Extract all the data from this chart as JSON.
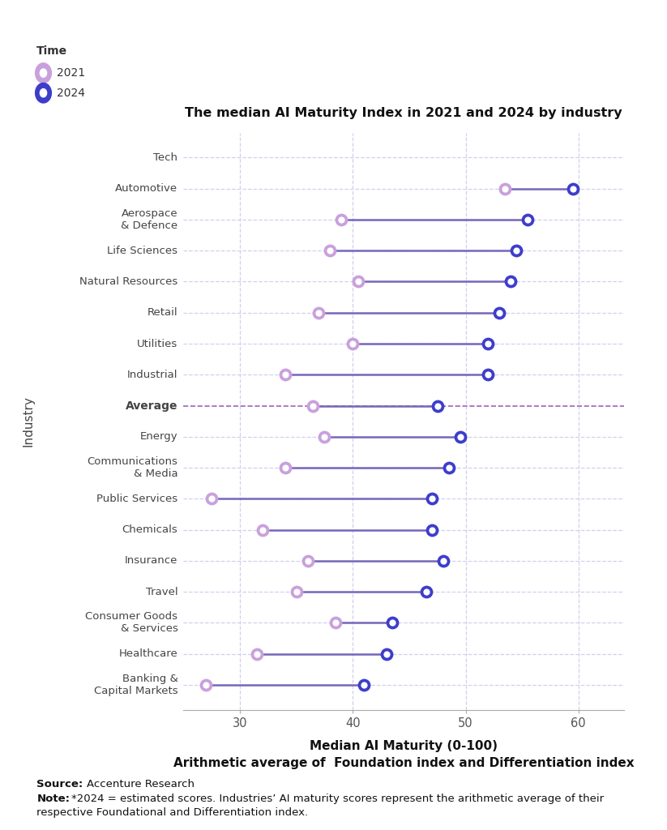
{
  "title": "The median AI Maturity Index in 2021 and 2024 by industry",
  "xlabel_line1": "Median AI Maturity (0-100)",
  "xlabel_line2": "Arithmetic average of  Foundation index and Differentiation index",
  "ylabel": "Industry",
  "legend_title": "Time",
  "legend_2021": "2021",
  "legend_2024": "2024",
  "xlim": [
    25,
    64
  ],
  "xticks": [
    30,
    40,
    50,
    60
  ],
  "industries": [
    "Tech",
    "Automotive",
    "Aerospace\n& Defence",
    "Life Sciences",
    "Natural Resources",
    "Retail",
    "Utilities",
    "Industrial",
    "Average",
    "Energy",
    "Communications\n& Media",
    "Public Services",
    "Chemicals",
    "Insurance",
    "Travel",
    "Consumer Goods\n& Services",
    "Healthcare",
    "Banking &\nCapital Markets"
  ],
  "val_2021": [
    null,
    53.5,
    39.0,
    38.0,
    40.5,
    37.0,
    40.0,
    34.0,
    36.5,
    37.5,
    34.0,
    27.5,
    32.0,
    36.0,
    35.0,
    38.5,
    31.5,
    27.0
  ],
  "val_2024": [
    null,
    59.5,
    55.5,
    54.5,
    54.0,
    53.0,
    52.0,
    52.0,
    47.5,
    49.5,
    48.5,
    47.0,
    47.0,
    48.0,
    46.5,
    43.5,
    43.0,
    41.0
  ],
  "color_2021": "#c9a0dc",
  "color_2024": "#3d3dcc",
  "line_color": "#7766bb",
  "avg_line_color": "#9966bb",
  "background_color": "#ffffff",
  "grid_color": "#d0d0f0",
  "is_bold": [
    false,
    false,
    false,
    false,
    false,
    false,
    false,
    false,
    true,
    false,
    false,
    false,
    false,
    false,
    false,
    false,
    false,
    false
  ]
}
